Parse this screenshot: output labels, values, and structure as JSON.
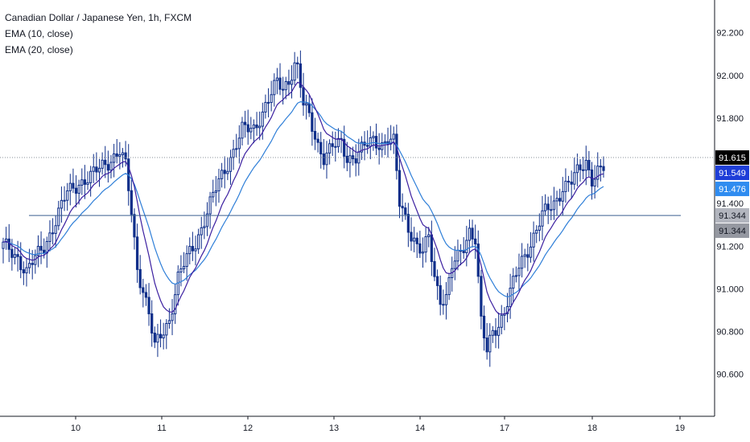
{
  "chart_data": {
    "type": "candlestick",
    "symbol": "Canadian Dollar / Japanese Yen",
    "interval": "1h",
    "exchange": "FXCM",
    "indicators": [
      "EMA (10, close)",
      "EMA (20, close)"
    ],
    "x_ticks": [
      "10",
      "11",
      "12",
      "13",
      "14",
      "17",
      "18",
      "19"
    ],
    "y_ticks": [
      "92.200",
      "92.000",
      "91.800",
      "91.400",
      "91.200",
      "91.000",
      "90.800",
      "90.600"
    ],
    "ylim": [
      90.52,
      92.24
    ],
    "grid": false,
    "price_labels": {
      "last": "91.615",
      "ema10": "91.549",
      "ema20": "91.476",
      "hline_1": "91.344",
      "hline_2": "91.344"
    },
    "horizontal_lines": [
      91.344
    ],
    "current_price_line": 91.615,
    "anchors": [
      [
        0,
        91.2
      ],
      [
        5,
        91.15
      ],
      [
        8,
        91.08
      ],
      [
        10,
        91.12
      ],
      [
        14,
        91.2
      ],
      [
        18,
        91.32
      ],
      [
        22,
        91.45
      ],
      [
        26,
        91.5
      ],
      [
        30,
        91.52
      ],
      [
        34,
        91.58
      ],
      [
        38,
        91.62
      ],
      [
        40,
        91.64
      ],
      [
        42,
        91.57
      ],
      [
        44,
        91.36
      ],
      [
        46,
        91.1
      ],
      [
        48,
        91.0
      ],
      [
        50,
        90.88
      ],
      [
        52,
        90.72
      ],
      [
        54,
        90.78
      ],
      [
        57,
        90.86
      ],
      [
        60,
        91.05
      ],
      [
        63,
        91.14
      ],
      [
        66,
        91.22
      ],
      [
        70,
        91.36
      ],
      [
        74,
        91.5
      ],
      [
        78,
        91.62
      ],
      [
        82,
        91.74
      ],
      [
        86,
        91.75
      ],
      [
        90,
        91.86
      ],
      [
        94,
        91.96
      ],
      [
        96,
        91.94
      ],
      [
        98,
        91.98
      ],
      [
        100,
        92.06
      ],
      [
        101,
        92.03
      ],
      [
        103,
        91.86
      ],
      [
        105,
        91.8
      ],
      [
        108,
        91.68
      ],
      [
        110,
        91.62
      ],
      [
        113,
        91.66
      ],
      [
        116,
        91.68
      ],
      [
        118,
        91.62
      ],
      [
        121,
        91.62
      ],
      [
        124,
        91.66
      ],
      [
        127,
        91.7
      ],
      [
        130,
        91.68
      ],
      [
        132,
        91.7
      ],
      [
        134,
        91.68
      ],
      [
        136,
        91.4
      ],
      [
        138,
        91.34
      ],
      [
        140,
        91.26
      ],
      [
        142,
        91.2
      ],
      [
        144,
        91.16
      ],
      [
        146,
        91.24
      ],
      [
        148,
        91.06
      ],
      [
        150,
        90.96
      ],
      [
        152,
        90.96
      ],
      [
        154,
        91.1
      ],
      [
        156,
        91.14
      ],
      [
        158,
        91.2
      ],
      [
        160,
        91.28
      ],
      [
        162,
        91.24
      ],
      [
        164,
        90.84
      ],
      [
        166,
        90.7
      ],
      [
        168,
        90.8
      ],
      [
        170,
        90.84
      ],
      [
        172,
        90.9
      ],
      [
        174,
        90.98
      ],
      [
        177,
        91.1
      ],
      [
        181,
        91.22
      ],
      [
        185,
        91.34
      ],
      [
        189,
        91.4
      ],
      [
        192,
        91.48
      ],
      [
        195,
        91.5
      ],
      [
        198,
        91.56
      ],
      [
        200,
        91.6
      ],
      [
        202,
        91.52
      ],
      [
        204,
        91.55
      ],
      [
        206,
        91.56
      ]
    ]
  }
}
